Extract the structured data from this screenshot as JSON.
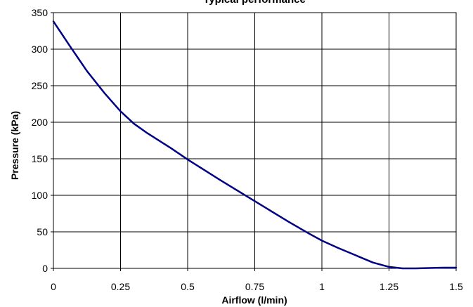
{
  "chart_data": {
    "type": "line",
    "title": "Typical performance",
    "xlabel": "Airflow (l/min)",
    "ylabel": "Pressure (kPa)",
    "xlim": [
      0,
      1.5
    ],
    "ylim": [
      0,
      350
    ],
    "x_ticks": [
      "0",
      "0.25",
      "0.5",
      "0.75",
      "1",
      "1.25",
      "1.5"
    ],
    "y_ticks": [
      "0",
      "50",
      "100",
      "150",
      "200",
      "250",
      "300",
      "350"
    ],
    "grid": true,
    "legend": "none",
    "series": [
      {
        "color": "#000080",
        "x": [
          0,
          0.06,
          0.125,
          0.19,
          0.25,
          0.3,
          0.35,
          0.44,
          0.5,
          0.625,
          0.75,
          0.875,
          0.95,
          1.0,
          1.06,
          1.125,
          1.19,
          1.25,
          1.3,
          1.35,
          1.45,
          1.5
        ],
        "y": [
          338,
          305,
          270,
          240,
          215,
          198,
          185,
          164,
          149,
          120,
          92,
          64,
          48,
          38,
          28,
          18,
          8,
          2,
          0,
          0,
          1,
          1
        ]
      }
    ]
  }
}
